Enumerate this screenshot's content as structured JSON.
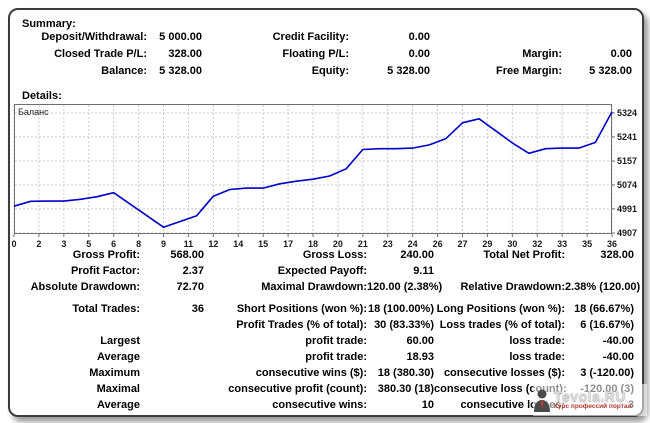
{
  "summary": {
    "title": "Summary:",
    "rows": [
      {
        "cells": [
          "Deposit/Withdrawal:",
          "5 000.00",
          "Credit Facility:",
          "0.00",
          "",
          ""
        ]
      },
      {
        "cells": [
          "Closed Trade P/L:",
          "328.00",
          "Floating P/L:",
          "0.00",
          "Margin:",
          "0.00"
        ]
      },
      {
        "cells": [
          "Balance:",
          "5 328.00",
          "Equity:",
          "5 328.00",
          "Free Margin:",
          "5 328.00"
        ]
      }
    ]
  },
  "details": {
    "title": "Details:",
    "rows": [
      {
        "cells": [
          "Gross Profit:",
          "568.00",
          "Gross Loss:",
          "240.00",
          "Total Net Profit:",
          "328.00"
        ]
      },
      {
        "cells": [
          "Profit Factor:",
          "2.37",
          "Expected Payoff:",
          "9.11",
          "",
          ""
        ]
      },
      {
        "cells": [
          "Absolute Drawdown:",
          "72.70",
          "Maximal Drawdown:",
          "120.00 (2.38%)",
          "Relative Drawdown:",
          "2.38% (120.00)"
        ]
      },
      {
        "cells": [
          "Total Trades:",
          "36",
          "Short Positions (won %):",
          "18 (100.00%)",
          "Long Positions (won %):",
          "18 (66.67%)"
        ],
        "gap": true
      },
      {
        "cells": [
          "",
          "",
          "Profit Trades (% of total):",
          "30 (83.33%)",
          "Loss trades (% of total):",
          "6 (16.67%)"
        ]
      },
      {
        "cells": [
          "Largest",
          "",
          "profit trade:",
          "60.00",
          "loss trade:",
          "-40.00"
        ]
      },
      {
        "cells": [
          "Average",
          "",
          "profit trade:",
          "18.93",
          "loss trade:",
          "-40.00"
        ]
      },
      {
        "cells": [
          "Maximum",
          "",
          "consecutive wins ($):",
          "18 (380.30)",
          "consecutive losses ($):",
          "3 (-120.00)"
        ]
      },
      {
        "cells": [
          "Maximal",
          "",
          "consecutive profit (count):",
          "380.30 (18)",
          "consecutive loss (count):",
          "-120.00 (3)"
        ]
      },
      {
        "cells": [
          "Average",
          "",
          "consecutive wins:",
          "10",
          "consecutive losses:",
          "3"
        ]
      }
    ]
  },
  "chart_data": {
    "type": "line",
    "title": "Баланс",
    "xlabel": "",
    "ylabel": "",
    "legend_position": "top-left",
    "grid": true,
    "xlim": [
      0,
      36
    ],
    "ylim": [
      4903,
      5355
    ],
    "x": [
      0,
      1,
      2,
      3,
      4,
      5,
      6,
      7,
      8,
      9,
      10,
      11,
      12,
      13,
      14,
      15,
      16,
      17,
      18,
      19,
      20,
      21,
      22,
      23,
      24,
      25,
      26,
      27,
      28,
      29,
      30,
      31,
      32,
      33,
      34,
      35,
      36
    ],
    "series": [
      {
        "name": "Баланс",
        "values": [
          5000,
          5017,
          5018,
          5018,
          5024,
          5033,
          5047,
          5007,
          4967,
          4927,
          4947,
          4967,
          5035,
          5058,
          5063,
          5063,
          5078,
          5087,
          5094,
          5105,
          5130,
          5197,
          5200,
          5200,
          5202,
          5213,
          5235,
          5290,
          5304,
          5262,
          5220,
          5184,
          5200,
          5202,
          5202,
          5222,
          5328
        ]
      }
    ],
    "x_tick_labels": [
      "0",
      "2",
      "3",
      "5",
      "6",
      "8",
      "9",
      "11",
      "12",
      "14",
      "15",
      "17",
      "18",
      "20",
      "21",
      "23",
      "24",
      "26",
      "27",
      "29",
      "30",
      "32",
      "33",
      "35",
      "36"
    ],
    "y_ticks": [
      5324,
      5241,
      5157,
      5074,
      4991,
      4907
    ]
  },
  "watermark": {
    "brand": "Tevola.RU",
    "subtitle": "Курс профессий портал"
  },
  "colors": {
    "line": "#0000C8",
    "grid": "#c9c9c9",
    "chart_border": "#6e6e6e",
    "axis_text": "#1a1a1a",
    "text": "#000000",
    "watermark_brand": "#dcdcdc",
    "watermark_subtitle": "#b03a2e"
  }
}
